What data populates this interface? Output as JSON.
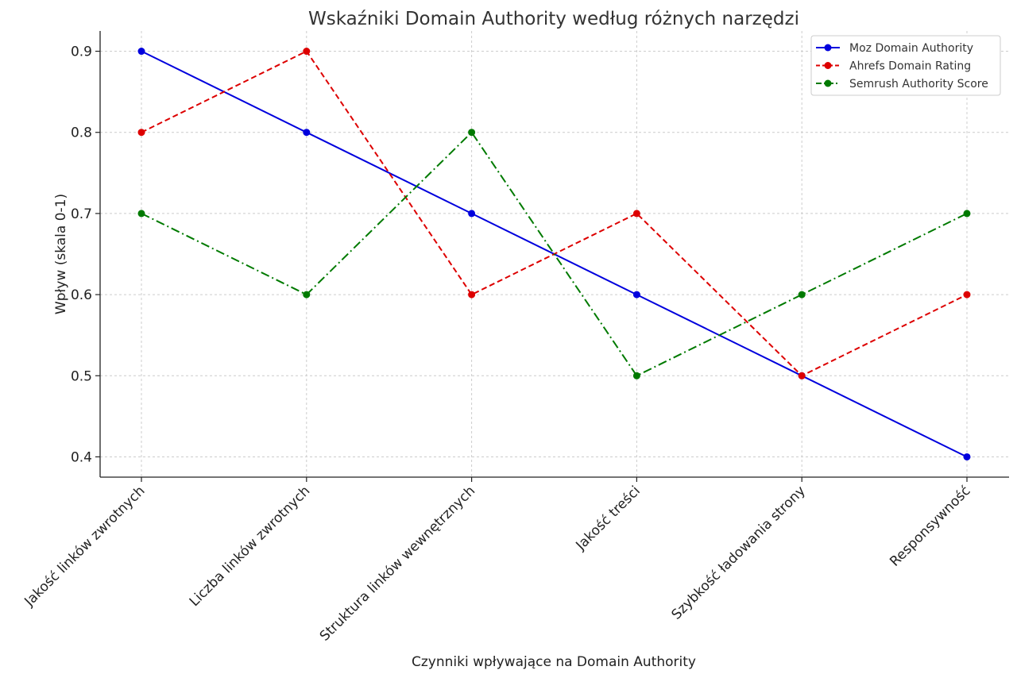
{
  "chart_data": {
    "type": "line",
    "title": "Wskaźniki Domain Authority według różnych narzędzi",
    "xlabel": "Czynniki wpływające na Domain Authority",
    "ylabel": "Wpływ (skala 0-1)",
    "categories": [
      "Jakość linków zwrotnych",
      "Liczba linków zwrotnych",
      "Struktura linków wewnętrznych",
      "Jakość treści",
      "Szybkość ładowania strony",
      "Responsywność"
    ],
    "ylim": [
      0.375,
      0.925
    ],
    "yticks": [
      "0.4",
      "0.5",
      "0.6",
      "0.7",
      "0.8",
      "0.9"
    ],
    "grid": true,
    "legend_position": "top-right",
    "series": [
      {
        "name": "Moz Domain Authority",
        "color": "#0000dd",
        "style": "solid",
        "values": [
          0.9,
          0.8,
          0.7,
          0.6,
          0.5,
          0.4
        ]
      },
      {
        "name": "Ahrefs Domain Rating",
        "color": "#dd0000",
        "style": "dashed",
        "values": [
          0.8,
          0.9,
          0.6,
          0.7,
          0.5,
          0.6
        ]
      },
      {
        "name": "Semrush Authority Score",
        "color": "#007a00",
        "style": "dashdot",
        "values": [
          0.7,
          0.6,
          0.8,
          0.5,
          0.6,
          0.7
        ]
      }
    ]
  }
}
